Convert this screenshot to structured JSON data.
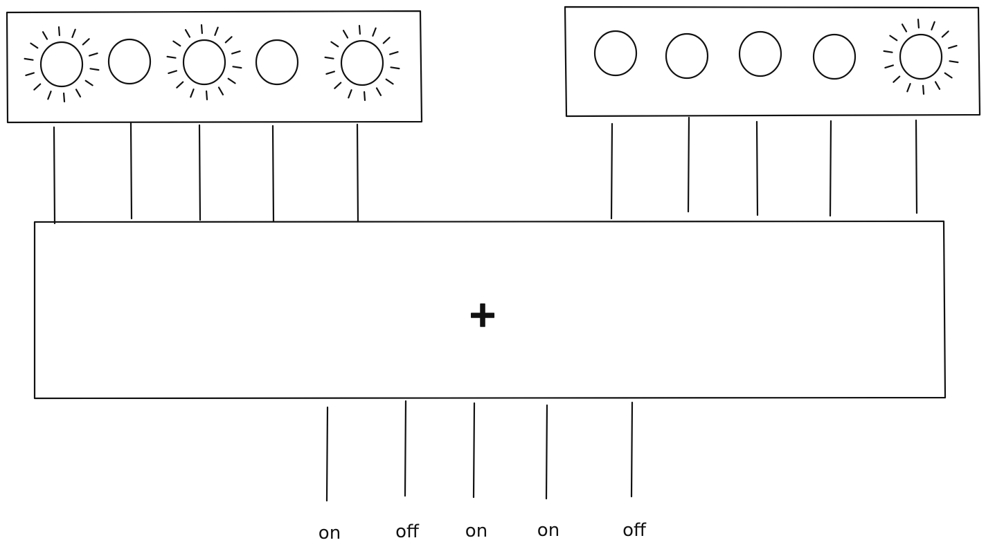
{
  "diagram": {
    "operator_symbol": "+",
    "input_a_bits": [
      1,
      0,
      1,
      0,
      1
    ],
    "input_b_bits": [
      0,
      0,
      0,
      0,
      1
    ],
    "output_labels": [
      "on",
      "off",
      "on",
      "on",
      "off"
    ],
    "ink_color": "#111111",
    "background_color": "#ffffff"
  }
}
